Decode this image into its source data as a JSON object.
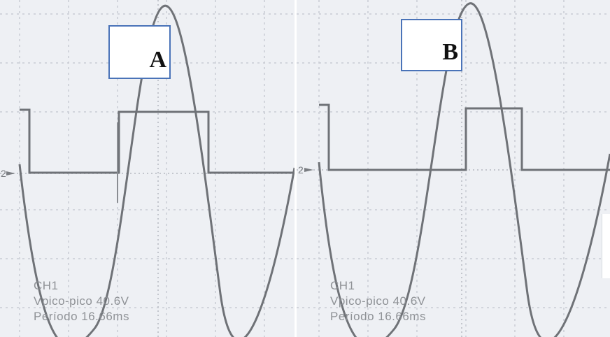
{
  "colors": {
    "screen_background": "#eef0f4",
    "grid": "#c9ccd3",
    "trace": "#6f7277",
    "readout_text": "#8a8d92",
    "label_border": "#4a73b8"
  },
  "panels": [
    {
      "label": "A",
      "readout": {
        "channel": "CH1",
        "peak_to_peak": "Vpico-pico 40.6V",
        "period": "Período 16.66ms"
      },
      "ground_marker": "2"
    },
    {
      "label": "B",
      "readout": {
        "channel": "CH1",
        "peak_to_peak": "Vpico-pico 40.6V",
        "period": "Período 16.66ms"
      },
      "ground_marker": "2"
    }
  ]
}
